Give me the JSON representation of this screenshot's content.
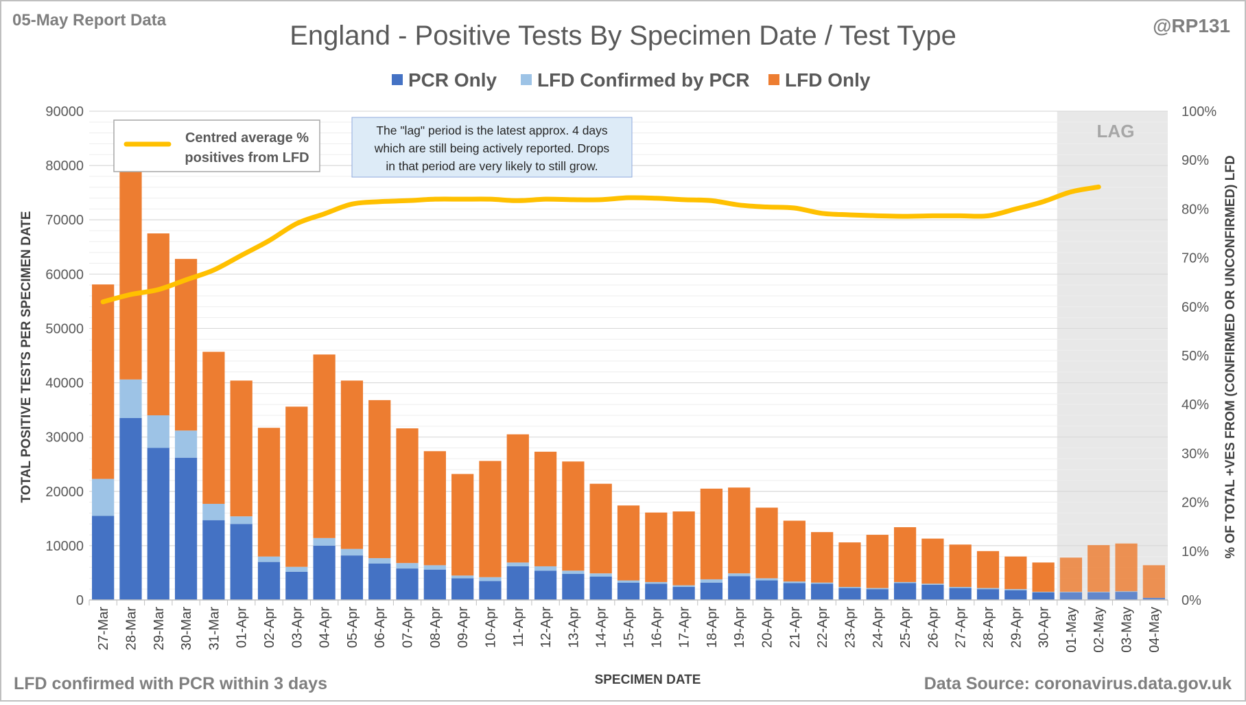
{
  "header": {
    "report_label": "05-May Report Data",
    "handle": "@RP131",
    "title": "England - Positive Tests By Specimen Date / Test Type"
  },
  "footer": {
    "note": "LFD confirmed with PCR within 3 days",
    "source": "Data Source: coronavirus.data.gov.uk"
  },
  "annotations": {
    "lag_label": "LAG",
    "lag_note_lines": [
      "The \"lag\" period is the latest approx. 4 days",
      "which are still being actively reported.  Drops",
      "in that period are very likely to still grow."
    ],
    "line_legend_lines": [
      "Centred average %",
      "positives from LFD"
    ]
  },
  "colors": {
    "pcr_only": "#4472C4",
    "lfd_confirmed": "#9DC3E6",
    "lfd_only": "#ED7D31",
    "line": "#FFC000",
    "lag_shade": "#E8E8E8",
    "grid": "#D9D9D9",
    "text": "#595959"
  },
  "chart_data": {
    "type": "bar",
    "stacked": true,
    "title": "England - Positive Tests By Specimen Date / Test Type",
    "xlabel": "SPECIMEN DATE",
    "ylabel": "TOTAL POSITIVE TESTS PER SPECIMEN DATE",
    "y2label": "% OF TOTAL +VES FROM (CONFIRMED OR UNCONFIRMED) LFD",
    "ylim": [
      0,
      90000
    ],
    "y2lim": [
      0,
      100
    ],
    "y_ticks": [
      0,
      10000,
      20000,
      30000,
      40000,
      50000,
      60000,
      70000,
      80000,
      90000
    ],
    "y2_ticks": [
      "0%",
      "10%",
      "20%",
      "30%",
      "40%",
      "50%",
      "60%",
      "70%",
      "80%",
      "90%",
      "100%"
    ],
    "grid": true,
    "legend_position": "top",
    "lag_categories": [
      "01-May",
      "02-May",
      "03-May",
      "04-May"
    ],
    "categories": [
      "27-Mar",
      "28-Mar",
      "29-Mar",
      "30-Mar",
      "31-Mar",
      "01-Apr",
      "02-Apr",
      "03-Apr",
      "04-Apr",
      "05-Apr",
      "06-Apr",
      "07-Apr",
      "08-Apr",
      "09-Apr",
      "10-Apr",
      "11-Apr",
      "12-Apr",
      "13-Apr",
      "14-Apr",
      "15-Apr",
      "16-Apr",
      "17-Apr",
      "18-Apr",
      "19-Apr",
      "20-Apr",
      "21-Apr",
      "22-Apr",
      "23-Apr",
      "24-Apr",
      "25-Apr",
      "26-Apr",
      "27-Apr",
      "28-Apr",
      "29-Apr",
      "30-Apr",
      "01-May",
      "02-May",
      "03-May",
      "04-May"
    ],
    "series": [
      {
        "name": "PCR Only",
        "values": [
          15500,
          33500,
          28000,
          26200,
          14700,
          14000,
          7000,
          5200,
          10000,
          8200,
          6700,
          5800,
          5600,
          4000,
          3500,
          6200,
          5400,
          4800,
          4300,
          3200,
          3000,
          2400,
          3200,
          4400,
          3600,
          3100,
          3000,
          2200,
          2000,
          3100,
          2800,
          2200,
          2000,
          1800,
          1400,
          1400,
          1400,
          1500,
          400
        ]
      },
      {
        "name": "LFD Confirmed by PCR",
        "values": [
          6800,
          7100,
          6000,
          5000,
          3000,
          1400,
          1000,
          900,
          1400,
          1200,
          1000,
          1000,
          800,
          500,
          700,
          700,
          800,
          600,
          600,
          400,
          300,
          300,
          600,
          500,
          400,
          300,
          200,
          200,
          200,
          200,
          200,
          200,
          200,
          200,
          100,
          100,
          100,
          100,
          0
        ]
      },
      {
        "name": "LFD Only",
        "values": [
          35800,
          38300,
          33500,
          31600,
          28000,
          25000,
          23700,
          29500,
          33800,
          31000,
          29100,
          24800,
          21000,
          18700,
          21400,
          23600,
          21100,
          20100,
          16500,
          13800,
          12800,
          13600,
          16700,
          15800,
          13000,
          11200,
          9300,
          8200,
          9800,
          10100,
          8300,
          7800,
          6800,
          6000,
          5400,
          6300,
          8600,
          8800,
          6000
        ]
      }
    ],
    "line": {
      "name": "Centred average % positives from LFD",
      "values": [
        61,
        62.5,
        63.5,
        65.5,
        67.5,
        70.5,
        73.5,
        77,
        79,
        81,
        81.5,
        81.7,
        82,
        82,
        82,
        81.7,
        82,
        81.9,
        81.9,
        82.3,
        82.2,
        81.9,
        81.7,
        80.8,
        80.4,
        80.2,
        79.1,
        78.8,
        78.6,
        78.5,
        78.6,
        78.6,
        78.6,
        80,
        81.5,
        83.5,
        84.5,
        null,
        null
      ]
    }
  }
}
